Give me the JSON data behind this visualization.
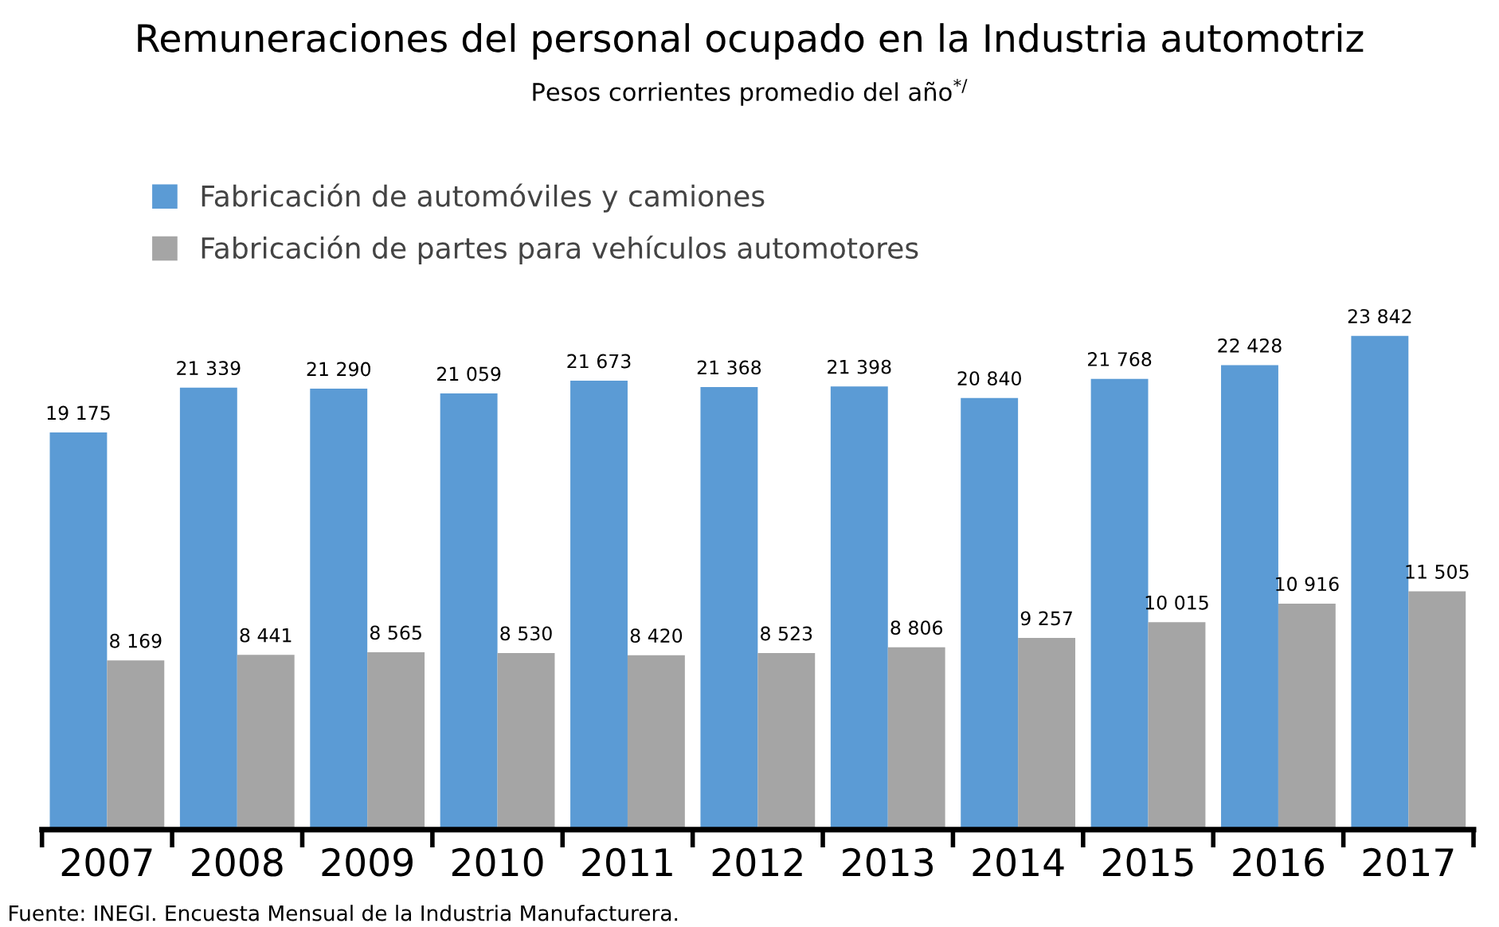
{
  "chart_data": {
    "type": "bar",
    "title": "Remuneraciones del personal ocupado en la Industria automotriz",
    "subtitle": "Pesos corrientes promedio del año$^{*/}$",
    "categories": [
      "2007",
      "2008",
      "2009",
      "2010",
      "2011",
      "2012",
      "2013",
      "2014",
      "2015",
      "2016",
      "2017"
    ],
    "series": [
      {
        "name": "Fabricación de automóviles y camiones",
        "color": "#5b9bd5",
        "values": [
          19175,
          21339,
          21290,
          21059,
          21673,
          21368,
          21398,
          20840,
          21768,
          22428,
          23842
        ],
        "value_labels": [
          "19 175",
          "21 339",
          "21 290",
          "21 059",
          "21 673",
          "21 368",
          "21 398",
          "20 840",
          "21 768",
          "22 428",
          "23 842"
        ]
      },
      {
        "name": "Fabricación de partes para vehículos automotores",
        "color": "#a5a5a5",
        "values": [
          8169,
          8441,
          8565,
          8530,
          8420,
          8523,
          8806,
          9257,
          10015,
          10916,
          11505
        ],
        "value_labels": [
          "8 169",
          "8 441",
          "8 565",
          "8 530",
          "8 420",
          "8 523",
          "8 806",
          "9 257",
          "10 015",
          "10 916",
          "11 505"
        ]
      }
    ],
    "legend": "top left",
    "annotations": [
      "Fuente: INEGI. Encuesta Mensual de la Industria Manufacturera."
    ]
  }
}
